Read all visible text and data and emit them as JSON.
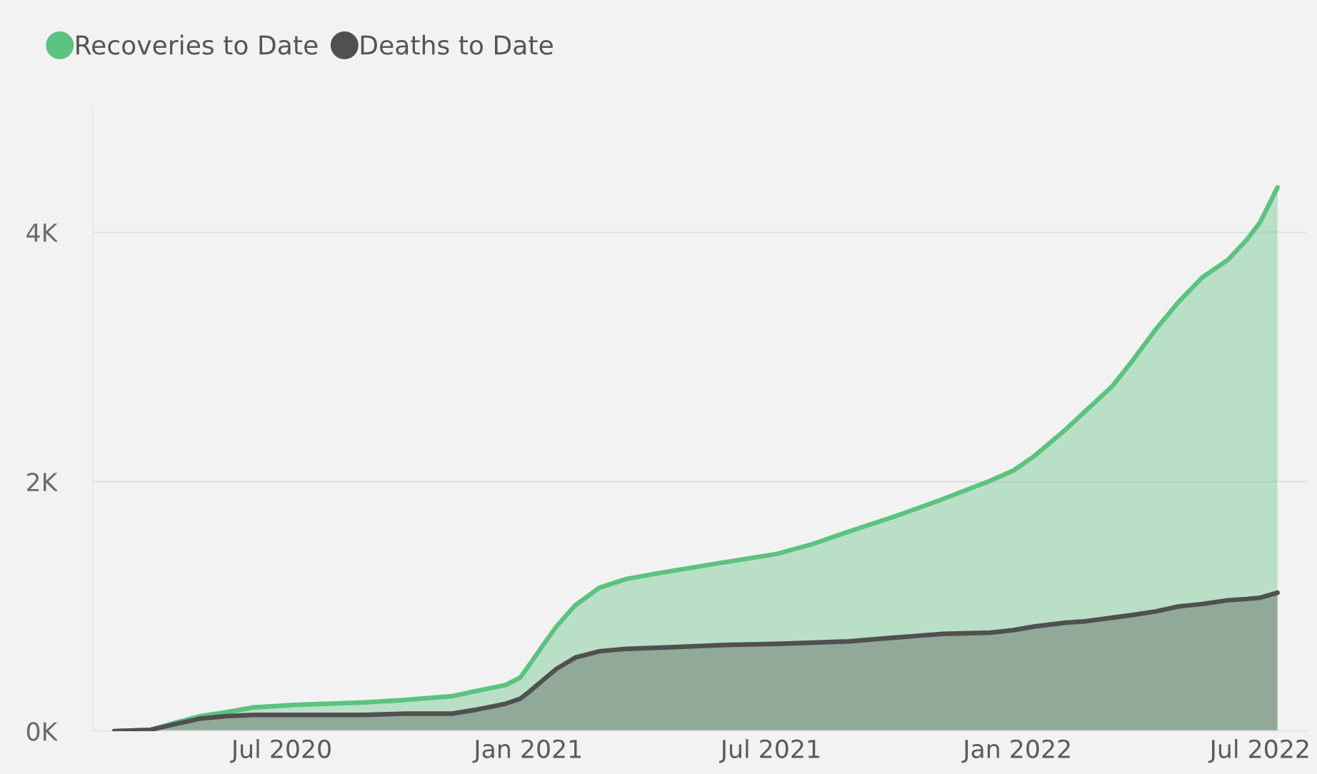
{
  "chart_data": {
    "type": "area",
    "x": [
      "2020-02-27",
      "2020-03-25",
      "2020-04-10",
      "2020-05-01",
      "2020-05-20",
      "2020-06-10",
      "2020-07-10",
      "2020-09-01",
      "2020-10-01",
      "2020-11-05",
      "2020-11-22",
      "2020-12-15",
      "2020-12-26",
      "2021-01-01",
      "2021-01-12",
      "2021-01-22",
      "2021-02-05",
      "2021-02-23",
      "2021-03-15",
      "2021-04-10",
      "2021-05-25",
      "2021-07-05",
      "2021-08-01",
      "2021-08-28",
      "2021-10-01",
      "2021-11-06",
      "2021-12-12",
      "2021-12-29",
      "2022-01-14",
      "2022-02-06",
      "2022-02-20",
      "2022-03-13",
      "2022-03-27",
      "2022-04-14",
      "2022-05-01",
      "2022-05-19",
      "2022-06-07",
      "2022-06-21",
      "2022-07-01",
      "2022-07-14"
    ],
    "series": [
      {
        "name": "Recoveries to Date",
        "color": "#5cc27f",
        "values": [
          0,
          10,
          60,
          120,
          150,
          190,
          210,
          230,
          250,
          280,
          320,
          370,
          430,
          520,
          690,
          840,
          1010,
          1150,
          1220,
          1270,
          1350,
          1420,
          1500,
          1600,
          1720,
          1860,
          2010,
          2090,
          2210,
          2420,
          2560,
          2770,
          2960,
          3220,
          3440,
          3640,
          3780,
          3940,
          4080,
          4360
        ]
      },
      {
        "name": "Deaths to Date",
        "color": "#505050",
        "values": [
          0,
          10,
          50,
          100,
          120,
          130,
          130,
          130,
          140,
          140,
          170,
          220,
          260,
          310,
          410,
          500,
          590,
          640,
          660,
          670,
          690,
          700,
          710,
          720,
          750,
          780,
          790,
          810,
          840,
          870,
          880,
          910,
          930,
          960,
          1000,
          1020,
          1050,
          1060,
          1070,
          1110
        ]
      }
    ],
    "xlim": [
      "2020-02-11",
      "2022-08-05"
    ],
    "xticks": [
      {
        "value": "2020-07-01",
        "label": "Jul 2020"
      },
      {
        "value": "2021-01-01",
        "label": "Jan 2021"
      },
      {
        "value": "2021-07-01",
        "label": "Jul 2021"
      },
      {
        "value": "2022-01-01",
        "label": "Jan 2022"
      },
      {
        "value": "2022-07-01",
        "label": "Jul 2022"
      }
    ],
    "ylim": [
      0,
      5000
    ],
    "yticks": [
      {
        "value": 0,
        "label": "0K"
      },
      {
        "value": 2000,
        "label": "2K"
      },
      {
        "value": 4000,
        "label": "4K"
      }
    ],
    "grid": "y",
    "legend": "top left"
  }
}
